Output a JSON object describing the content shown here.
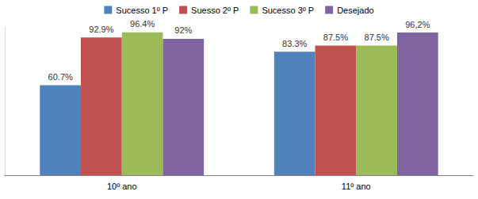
{
  "chart_data": {
    "type": "bar",
    "categories": [
      "10º ano",
      "11º ano"
    ],
    "series": [
      {
        "name": "Sucesso 1º P",
        "color": "#4f81bd",
        "values": [
          60.7,
          83.3
        ],
        "value_labels": [
          "60.7%",
          "83.3%"
        ]
      },
      {
        "name": "Suesso 2º P",
        "color": "#c0504d",
        "values": [
          92.9,
          87.5
        ],
        "value_labels": [
          "92.9%",
          "87.5%"
        ]
      },
      {
        "name": "Sucesso 3º P",
        "color": "#9bbb59",
        "values": [
          96.4,
          87.5
        ],
        "value_labels": [
          "96.4%",
          "87.5%"
        ]
      },
      {
        "name": "Desejado",
        "color": "#8064a2",
        "values": [
          92,
          96.2
        ],
        "value_labels": [
          "92%",
          "96,2%"
        ]
      }
    ],
    "ylim": [
      0,
      100
    ],
    "legend": "top",
    "data_labels": true,
    "tick_labels": "x",
    "grid": false
  }
}
